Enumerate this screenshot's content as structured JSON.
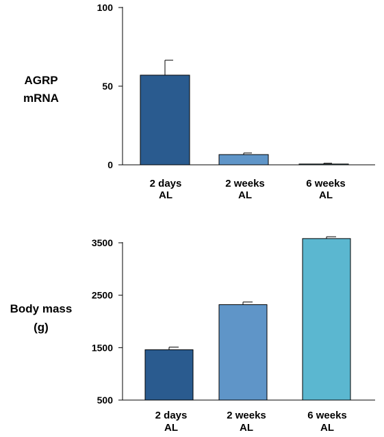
{
  "chart_data": [
    {
      "type": "bar",
      "ylabel_lines": [
        "AGRP",
        "mRNA"
      ],
      "categories": [
        [
          "2 days",
          "AL"
        ],
        [
          "2 weeks",
          "AL"
        ],
        [
          "6 weeks",
          "AL"
        ]
      ],
      "values": [
        57,
        6.5,
        0.5
      ],
      "errors": [
        9.5,
        1,
        0.5
      ],
      "ylim": [
        0,
        100
      ],
      "yticks": [
        0,
        50,
        100
      ],
      "colors": [
        "#2a5b8f",
        "#5f95c8",
        "#5bb7d0"
      ],
      "grid": false,
      "legend": "none"
    },
    {
      "type": "bar",
      "ylabel_lines": [
        "Body mass",
        "(g)"
      ],
      "categories": [
        [
          "2 days",
          "AL"
        ],
        [
          "2 weeks",
          "AL"
        ],
        [
          "6 weeks",
          "AL"
        ]
      ],
      "values": [
        1460,
        2320,
        3580
      ],
      "errors": [
        50,
        50,
        35
      ],
      "ylim": [
        500,
        3500
      ],
      "yticks": [
        500,
        1500,
        2500,
        3500
      ],
      "colors": [
        "#2a5b8f",
        "#5f95c8",
        "#5bb7d0"
      ],
      "grid": false,
      "legend": "none"
    }
  ]
}
